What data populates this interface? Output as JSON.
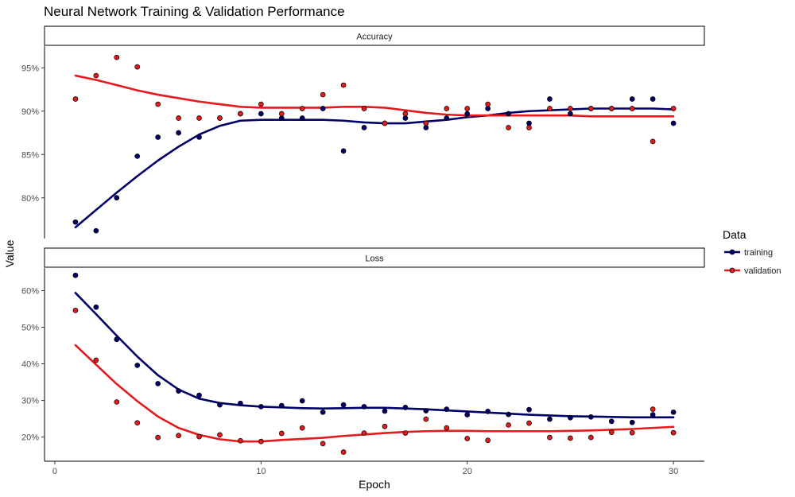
{
  "chart_data": {
    "type": "scatter",
    "title": "Neural Network Training & Validation Performance",
    "xlabel": "Epoch",
    "ylabel": "Value",
    "legend": {
      "title": "Data",
      "placement": "right",
      "entries": [
        "training",
        "validation"
      ]
    },
    "colors": {
      "training": "#000066",
      "validation": "#e41a1c"
    },
    "x_ticks": [
      0,
      10,
      20,
      30
    ],
    "xlim": [
      -0.5,
      31.5
    ],
    "x": [
      1,
      2,
      3,
      4,
      5,
      6,
      7,
      8,
      9,
      10,
      11,
      12,
      13,
      14,
      15,
      16,
      17,
      18,
      19,
      20,
      21,
      22,
      23,
      24,
      25,
      26,
      27,
      28,
      29,
      30
    ],
    "grid": false,
    "smoothing": "loess",
    "panels": [
      {
        "strip": "Accuracy",
        "ylim": [
          75.3,
          97.5
        ],
        "y_ticks": [
          80,
          85,
          90,
          95
        ],
        "y_tick_labels": [
          "80%",
          "85%",
          "90%",
          "95%"
        ],
        "series": [
          {
            "name": "training",
            "values": [
              77.2,
              76.2,
              80.0,
              84.8,
              87.0,
              87.5,
              87.0,
              89.2,
              89.7,
              89.7,
              89.2,
              89.2,
              90.3,
              85.4,
              88.1,
              88.6,
              89.2,
              88.1,
              89.2,
              89.7,
              90.3,
              89.7,
              88.6,
              91.4,
              89.7,
              90.3,
              90.3,
              91.4,
              91.4,
              88.6
            ],
            "smooth": [
              76.6,
              78.6,
              80.6,
              82.5,
              84.3,
              85.9,
              87.3,
              88.3,
              88.9,
              89.0,
              89.0,
              89.0,
              89.0,
              88.9,
              88.7,
              88.6,
              88.6,
              88.8,
              89.0,
              89.3,
              89.5,
              89.8,
              90.0,
              90.1,
              90.2,
              90.3,
              90.3,
              90.3,
              90.3,
              90.2
            ]
          },
          {
            "name": "validation",
            "values": [
              91.4,
              94.1,
              96.2,
              95.1,
              90.8,
              89.2,
              89.2,
              89.2,
              89.7,
              90.8,
              89.7,
              90.3,
              91.9,
              93.0,
              90.3,
              88.6,
              89.7,
              88.6,
              90.3,
              90.3,
              90.8,
              88.1,
              88.1,
              90.3,
              90.3,
              90.3,
              90.3,
              90.3,
              86.5,
              90.3
            ],
            "smooth": [
              94.1,
              93.6,
              93.0,
              92.4,
              91.9,
              91.5,
              91.1,
              90.8,
              90.5,
              90.4,
              90.4,
              90.4,
              90.4,
              90.5,
              90.5,
              90.4,
              90.1,
              89.8,
              89.6,
              89.5,
              89.5,
              89.5,
              89.5,
              89.5,
              89.5,
              89.4,
              89.4,
              89.4,
              89.4,
              89.4
            ]
          }
        ]
      },
      {
        "strip": "Loss",
        "ylim": [
          13.4,
          66.2
        ],
        "y_ticks": [
          20,
          30,
          40,
          50,
          60
        ],
        "y_tick_labels": [
          "20%",
          "30%",
          "40%",
          "50%",
          "60%"
        ],
        "series": [
          {
            "name": "training",
            "values": [
              64.2,
              55.5,
              46.7,
              39.6,
              34.6,
              32.6,
              31.4,
              28.8,
              29.2,
              28.3,
              28.6,
              29.9,
              26.8,
              28.8,
              28.3,
              27.1,
              28.1,
              27.2,
              27.6,
              26.1,
              27.0,
              26.2,
              27.5,
              24.9,
              25.3,
              25.5,
              24.3,
              24.0,
              26.1,
              26.8
            ],
            "smooth": [
              59.4,
              53.6,
              47.7,
              42.0,
              36.9,
              33.0,
              30.5,
              29.3,
              28.7,
              28.3,
              28.1,
              27.9,
              27.8,
              27.9,
              28.0,
              28.0,
              27.8,
              27.6,
              27.3,
              27.0,
              26.7,
              26.4,
              26.1,
              25.9,
              25.7,
              25.6,
              25.5,
              25.4,
              25.4,
              25.4
            ]
          },
          {
            "name": "validation",
            "values": [
              54.6,
              41.0,
              29.6,
              23.9,
              19.9,
              20.4,
              20.1,
              20.6,
              19.0,
              18.8,
              21.0,
              22.5,
              18.2,
              15.9,
              21.1,
              22.9,
              21.1,
              24.9,
              22.5,
              19.6,
              19.1,
              23.3,
              23.8,
              19.9,
              19.7,
              19.9,
              21.3,
              21.2,
              27.6,
              21.2
            ],
            "smooth": [
              45.1,
              39.8,
              34.5,
              29.8,
              25.6,
              22.5,
              20.6,
              19.4,
              18.8,
              18.8,
              19.2,
              19.5,
              19.8,
              20.3,
              20.7,
              21.1,
              21.4,
              21.6,
              21.7,
              21.7,
              21.6,
              21.6,
              21.6,
              21.6,
              21.7,
              21.8,
              22.0,
              22.2,
              22.5,
              22.8
            ]
          }
        ]
      }
    ]
  }
}
